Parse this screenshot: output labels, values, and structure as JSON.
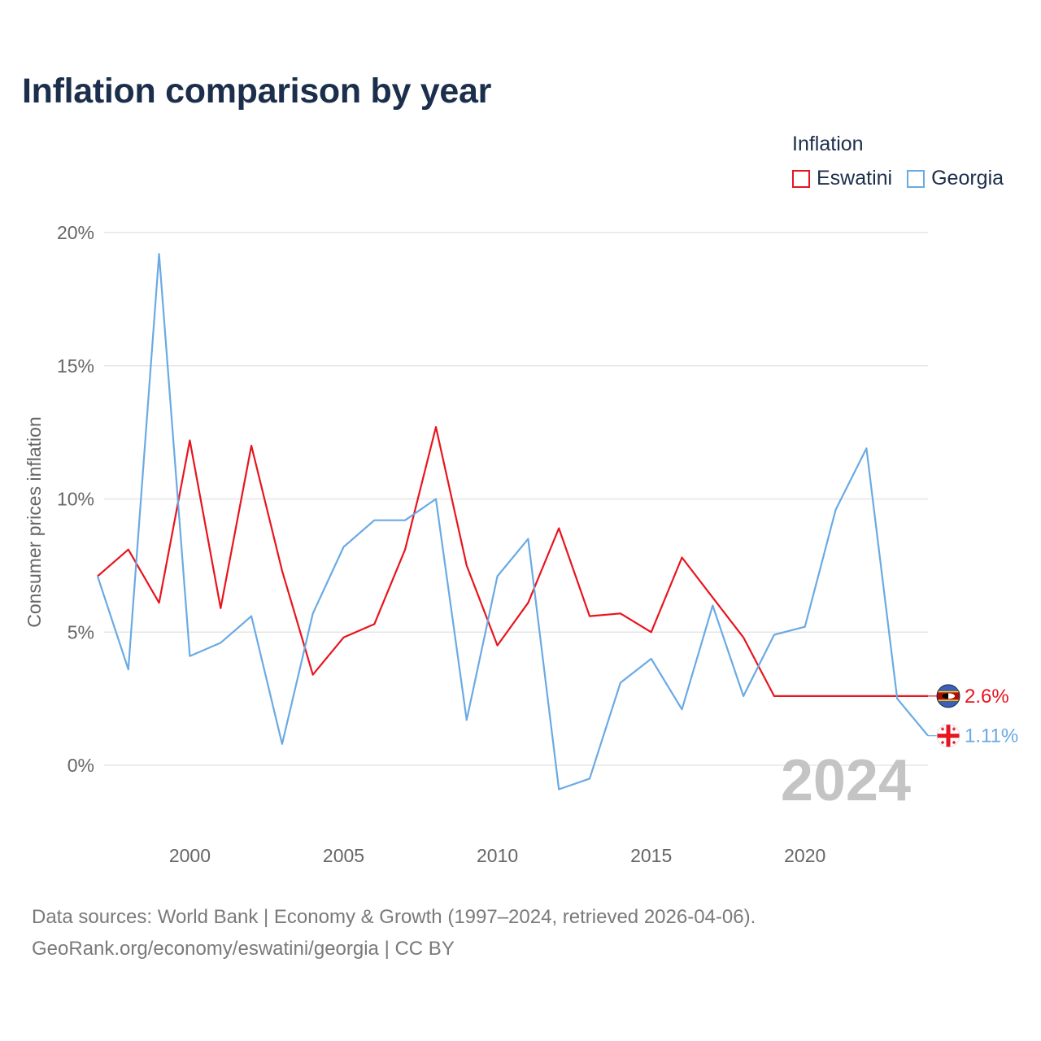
{
  "title": "Inflation comparison by year",
  "legend": {
    "title": "Inflation",
    "items": [
      {
        "label": "Eswatini",
        "color": "#e8141e"
      },
      {
        "label": "Georgia",
        "color": "#6aaae4"
      }
    ]
  },
  "chart_data": {
    "type": "line",
    "title": "Inflation comparison by year",
    "xlabel": "",
    "ylabel": "Consumer prices inflation",
    "xlim": [
      1997,
      2024
    ],
    "ylim": [
      -2,
      20
    ],
    "x_ticks": [
      2000,
      2005,
      2010,
      2015,
      2020
    ],
    "y_ticks": [
      0,
      5,
      10,
      15,
      20
    ],
    "y_tick_labels": [
      "0%",
      "5%",
      "10%",
      "15%",
      "20%"
    ],
    "grid": true,
    "x": [
      1997,
      1998,
      1999,
      2000,
      2001,
      2002,
      2003,
      2004,
      2005,
      2006,
      2007,
      2008,
      2009,
      2010,
      2011,
      2012,
      2013,
      2014,
      2015,
      2016,
      2017,
      2018,
      2019,
      2020,
      2021,
      2022,
      2023,
      2024
    ],
    "series": [
      {
        "name": "Eswatini",
        "color": "#e8141e",
        "values": [
          7.1,
          8.1,
          6.1,
          12.2,
          5.9,
          12.0,
          7.3,
          3.4,
          4.8,
          5.3,
          8.1,
          12.7,
          7.5,
          4.5,
          6.1,
          8.9,
          5.6,
          5.7,
          5.0,
          7.8,
          6.3,
          4.8,
          2.6,
          2.6,
          2.6,
          2.6,
          2.6,
          2.6
        ],
        "end_label": "2.6%"
      },
      {
        "name": "Georgia",
        "color": "#6aaae4",
        "values": [
          7.1,
          3.6,
          19.2,
          4.1,
          4.6,
          5.6,
          0.8,
          5.7,
          8.2,
          9.2,
          9.2,
          10.0,
          1.7,
          7.1,
          8.5,
          -0.9,
          -0.5,
          3.1,
          4.0,
          2.1,
          6.0,
          2.6,
          4.9,
          5.2,
          9.6,
          11.9,
          2.5,
          1.11
        ],
        "end_label": "1.11%"
      }
    ],
    "year_watermark": "2024"
  },
  "footer": {
    "line1": "Data sources: World Bank | Economy & Growth (1997–2024, retrieved 2026-04-06).",
    "line2": "GeoRank.org/economy/eswatini/georgia | CC BY"
  }
}
